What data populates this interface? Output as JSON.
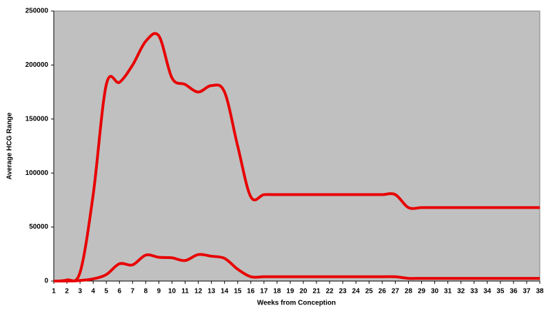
{
  "chart_data": {
    "type": "line",
    "x_label": "Weeks from Conception",
    "y_label": "Average HCG Range",
    "x": [
      1,
      2,
      3,
      4,
      5,
      6,
      7,
      8,
      9,
      10,
      11,
      12,
      13,
      14,
      15,
      16,
      17,
      18,
      19,
      20,
      21,
      22,
      23,
      24,
      25,
      26,
      27,
      28,
      29,
      30,
      31,
      32,
      33,
      34,
      35,
      36,
      37,
      38
    ],
    "series": [
      {
        "color": "#e80000",
        "values": [
          0,
          1000,
          8000,
          80000,
          182000,
          184000,
          200000,
          222000,
          227000,
          188000,
          182000,
          175000,
          181000,
          175000,
          125000,
          78000,
          80000,
          80000,
          80000,
          80000,
          80000,
          80000,
          80000,
          80000,
          80000,
          80000,
          80000,
          68000,
          68000,
          68000,
          68000,
          68000,
          68000,
          68000,
          68000,
          68000,
          68000,
          68000
        ]
      },
      {
        "color": "#e80000",
        "values": [
          0,
          0,
          500,
          2000,
          6000,
          16000,
          15000,
          24000,
          22000,
          21500,
          19000,
          24500,
          23000,
          21000,
          11000,
          4000,
          4000,
          4000,
          4000,
          4000,
          4000,
          4000,
          4000,
          4000,
          4000,
          4000,
          4000,
          2500,
          2500,
          2500,
          2500,
          2500,
          2500,
          2500,
          2500,
          2500,
          2500,
          2500
        ]
      }
    ],
    "xlim": [
      1,
      38
    ],
    "xticks": [
      1,
      2,
      3,
      4,
      5,
      6,
      7,
      8,
      9,
      10,
      11,
      12,
      13,
      14,
      15,
      16,
      17,
      18,
      19,
      20,
      21,
      22,
      23,
      24,
      25,
      26,
      27,
      28,
      29,
      30,
      31,
      32,
      33,
      34,
      35,
      36,
      37,
      38
    ],
    "ylim": [
      0,
      250000
    ],
    "yticks": [
      0,
      50000,
      100000,
      150000,
      200000,
      250000
    ],
    "background": "#c0c0c0"
  }
}
